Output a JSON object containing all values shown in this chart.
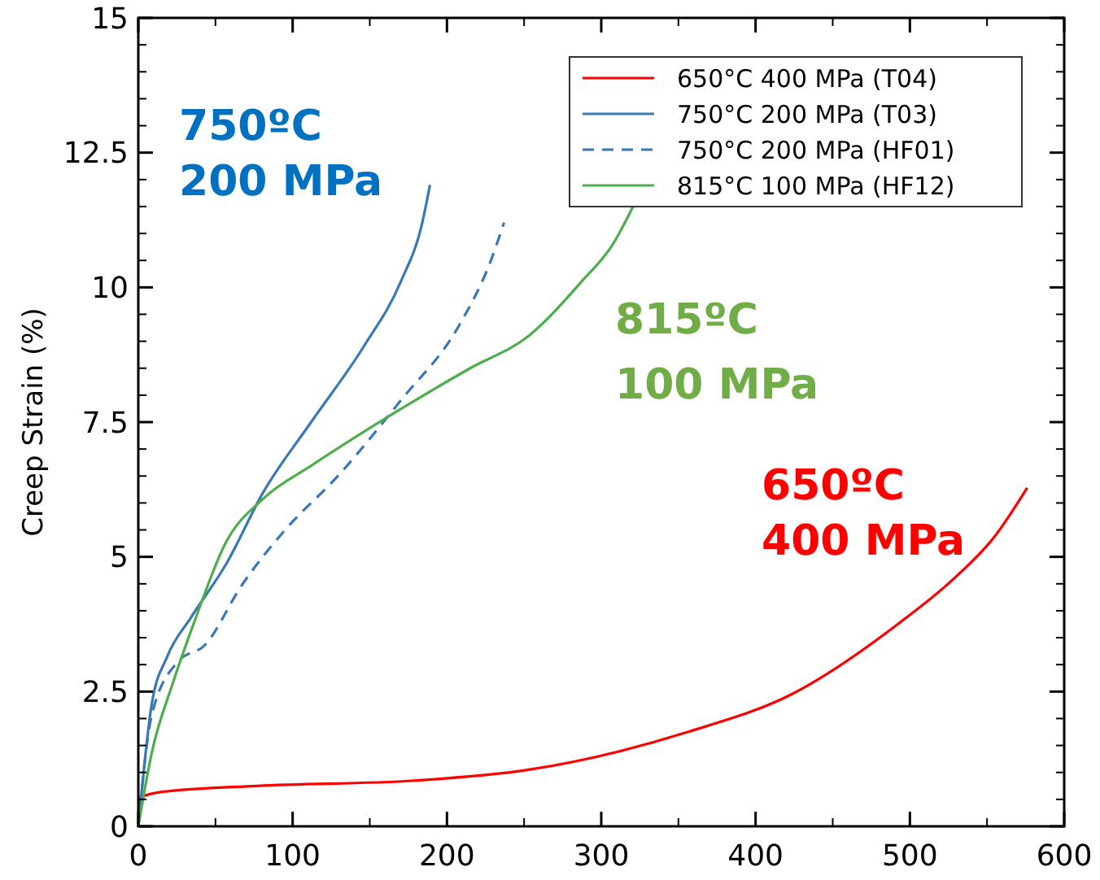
{
  "chart_data": {
    "type": "line",
    "ylabel": "Creep Strain (%)",
    "xlim": [
      0,
      600
    ],
    "ylim": [
      0,
      15
    ],
    "xticks": [
      0,
      100,
      200,
      300,
      400,
      500,
      600
    ],
    "yticks": [
      0,
      2.5,
      5,
      7.5,
      10,
      12.5,
      15
    ],
    "grid": false,
    "legend": "top right",
    "series": [
      {
        "name": "650°C 400 MPa (T04)",
        "color": "#ff0000",
        "line_style": "solid",
        "x": [
          0,
          1.7,
          15.5,
          77,
          180,
          253,
          356,
          424,
          493,
          527.5,
          555,
          576
        ],
        "values": [
          0,
          0.54,
          0.64,
          0.75,
          0.85,
          1.05,
          1.75,
          2.46,
          3.77,
          4.57,
          5.38,
          6.28
        ]
      },
      {
        "name": "750°C 200 MPa (T03)",
        "color": "#3a78b5",
        "line_style": "solid",
        "x": [
          0,
          8.6,
          18.9,
          34,
          57,
          81,
          112,
          146,
          170,
          184,
          189
        ],
        "values": [
          0,
          2.25,
          3.16,
          3.87,
          4.87,
          6.2,
          7.5,
          8.9,
          10.1,
          11.2,
          11.9
        ]
      },
      {
        "name": "750°C 200 MPa (HF01)",
        "color": "#3a78b5",
        "line_style": "dashed",
        "x": [
          0,
          8.6,
          25.8,
          43,
          67,
          94.5,
          129,
          170,
          208,
          228.5,
          237
        ],
        "values": [
          0,
          2.05,
          3.06,
          3.36,
          4.47,
          5.48,
          6.49,
          7.9,
          9.3,
          10.5,
          11.2
        ]
      },
      {
        "name": "815°C 100 MPa (HF12)",
        "color": "#4cae4c",
        "line_style": "solid",
        "x": [
          0,
          8.6,
          22.4,
          36,
          57,
          81,
          112,
          167,
          215,
          253,
          287,
          307.5,
          320.6
        ],
        "values": [
          0,
          1.35,
          2.66,
          3.77,
          5.28,
          6.08,
          6.69,
          7.69,
          8.5,
          9.1,
          10.1,
          10.8,
          11.5
        ]
      }
    ],
    "annotations": [
      "750ºC",
      "200 MPa",
      "815ºC",
      "100 MPa",
      "650ºC",
      "400 MPa"
    ]
  }
}
